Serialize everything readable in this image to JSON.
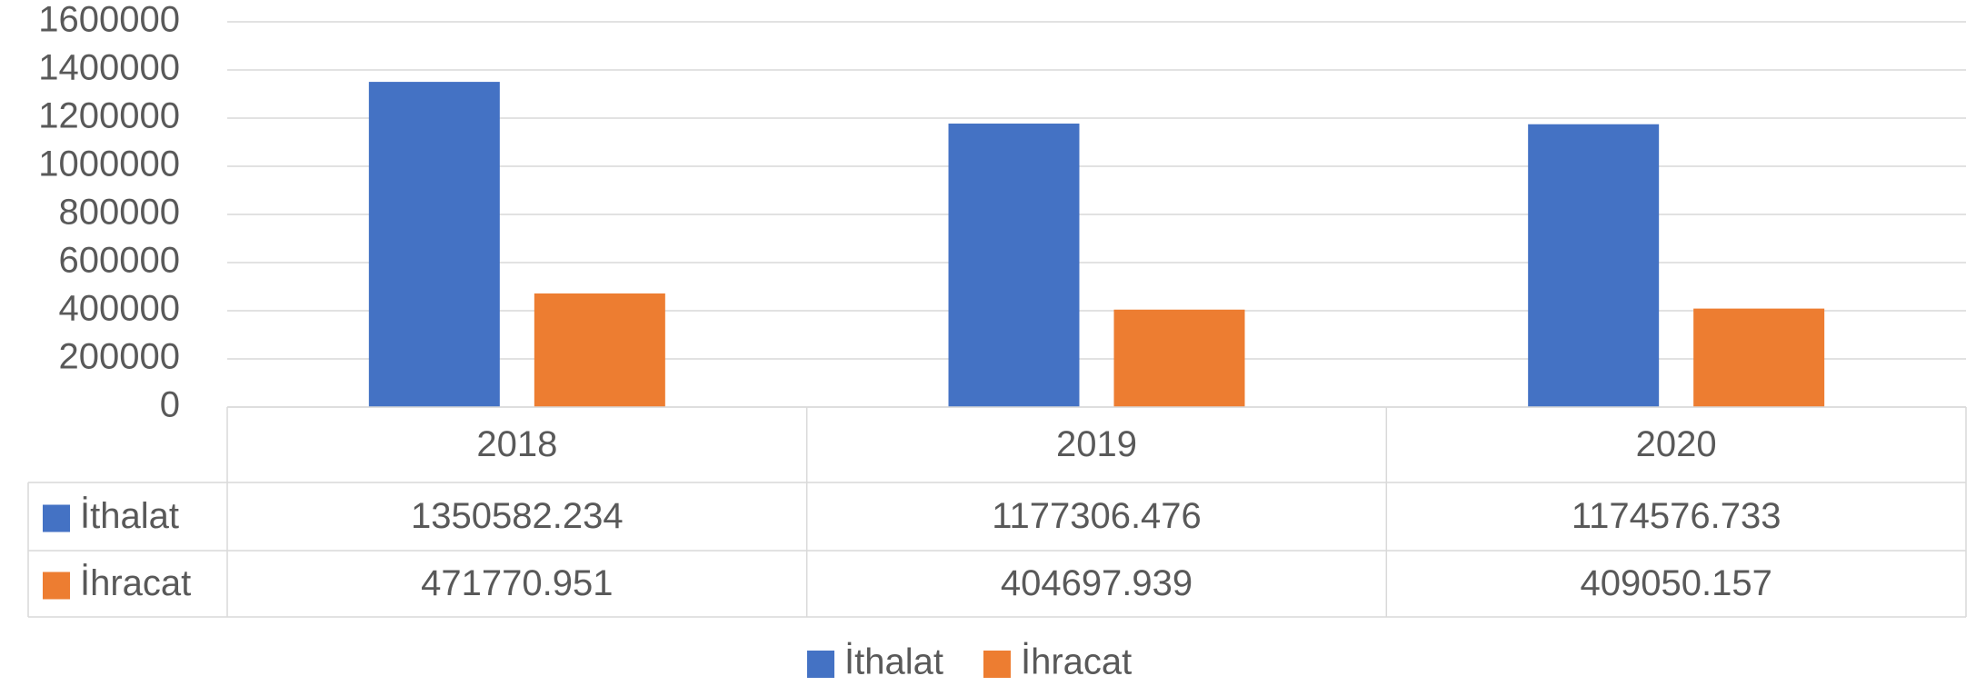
{
  "chart_data": {
    "type": "bar",
    "categories": [
      "2018",
      "2019",
      "2020"
    ],
    "series": [
      {
        "name": "İthalat",
        "color": "#4472c4",
        "values": [
          1350582.234,
          1177306.476,
          1174576.733
        ]
      },
      {
        "name": "İhracat",
        "color": "#ed7d31",
        "values": [
          471770.951,
          404697.939,
          409050.157
        ]
      }
    ],
    "ylim": [
      0,
      1600000
    ],
    "yticks": [
      0,
      200000,
      400000,
      600000,
      800000,
      1000000,
      1200000,
      1400000,
      1600000
    ],
    "grid": true,
    "legend": "bottom",
    "data_table": true
  }
}
